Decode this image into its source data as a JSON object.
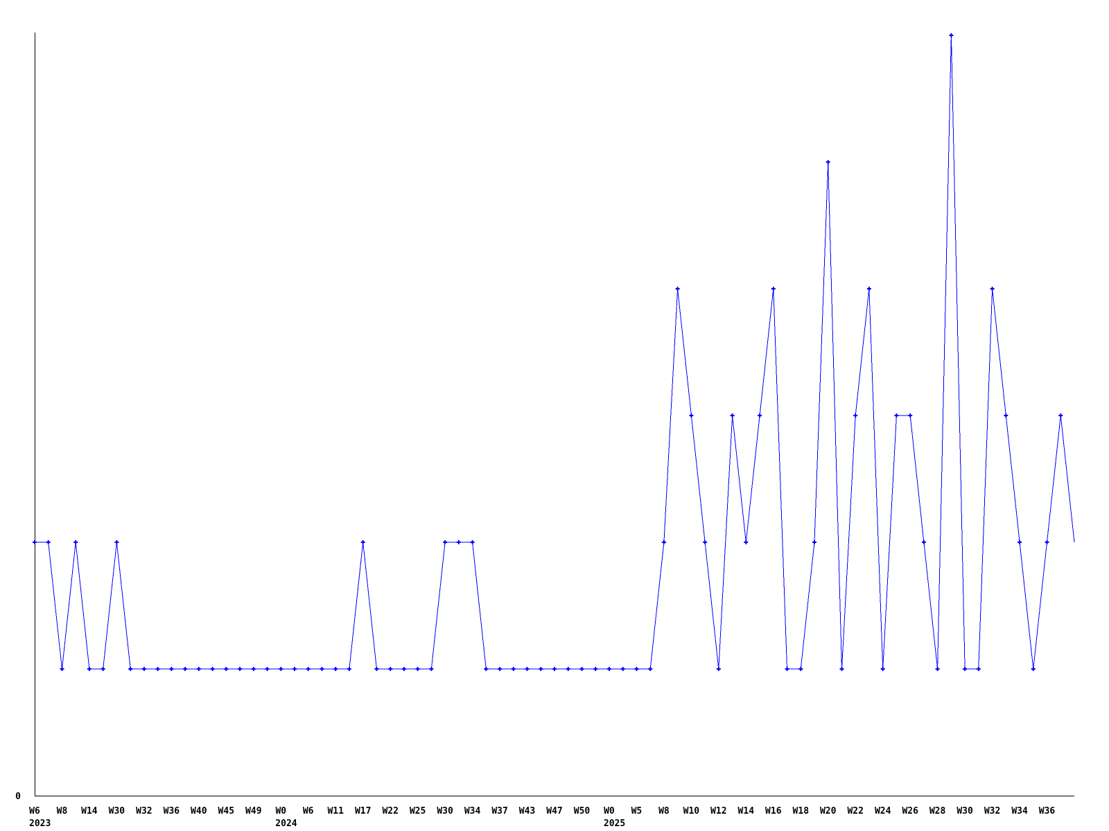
{
  "chart_data": {
    "type": "line",
    "title": "",
    "xlabel": "",
    "ylabel": "",
    "y_zero_label": "0",
    "ylim": [
      0,
      6.03
    ],
    "grid": false,
    "legend": false,
    "line_color": "#0000ff",
    "axis_color": "#000000",
    "marker": "plus",
    "last_point_marker_clipped": true,
    "x_tick_every_n_points": 2,
    "x_tick_labels": [
      "W6",
      "W8",
      "W14",
      "W30",
      "W32",
      "W36",
      "W40",
      "W45",
      "W49",
      "W0",
      "W6",
      "W11",
      "W17",
      "W22",
      "W25",
      "W30",
      "W34",
      "W37",
      "W43",
      "W47",
      "W50",
      "W0",
      "W5",
      "W8",
      "W10",
      "W12",
      "W14",
      "W16",
      "W18",
      "W20",
      "W22",
      "W24",
      "W26",
      "W28",
      "W30",
      "W32",
      "W34",
      "W36"
    ],
    "year_labels": [
      {
        "tick_index": 0,
        "text": "2023"
      },
      {
        "tick_index": 9,
        "text": "2024"
      },
      {
        "tick_index": 21,
        "text": "2025"
      }
    ],
    "series": [
      {
        "values": [
          2,
          2,
          1,
          2,
          1,
          1,
          2,
          1,
          1,
          1,
          1,
          1,
          1,
          1,
          1,
          1,
          1,
          1,
          1,
          1,
          1,
          1,
          1,
          1,
          2,
          1,
          1,
          1,
          1,
          1,
          2,
          2,
          2,
          1,
          1,
          1,
          1,
          1,
          1,
          1,
          1,
          1,
          1,
          1,
          1,
          1,
          2,
          4,
          3,
          2,
          1,
          3,
          2,
          3,
          4,
          1,
          1,
          2,
          5,
          1,
          3,
          4,
          1,
          3,
          3,
          2,
          1,
          6,
          1,
          1,
          4,
          3,
          2,
          1,
          2,
          3,
          2
        ]
      }
    ]
  }
}
